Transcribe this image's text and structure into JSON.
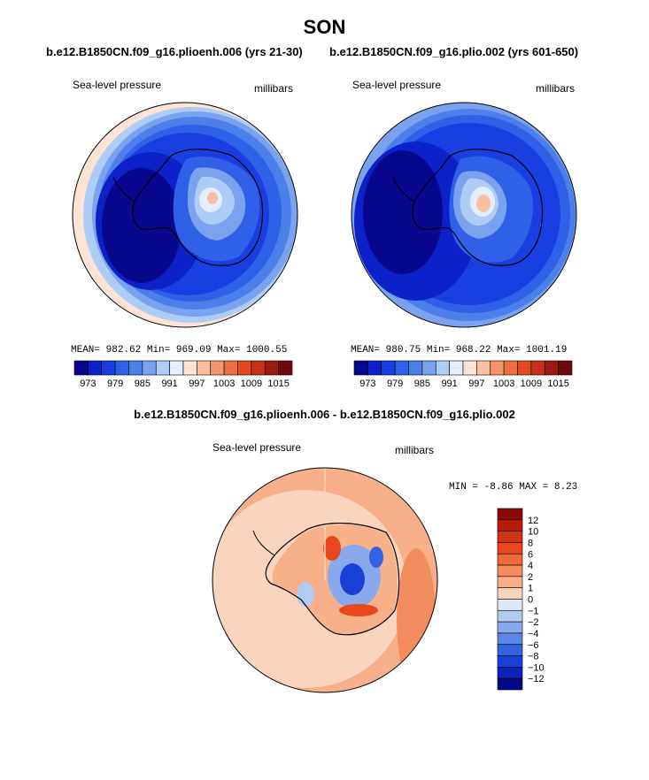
{
  "page": {
    "season": "SON",
    "left_title": "b.e12.B1850CN.f09_g16.plioenh.006 (yrs 21-30)",
    "right_title": "b.e12.B1850CN.f09_g16.plio.002 (yrs 601-650)",
    "diff_title": "b.e12.B1850CN.f09_g16.plioenh.006 - b.e12.B1850CN.f09_g16.plio.002"
  },
  "chart_data": [
    {
      "type": "heatmap",
      "projection": "south polar stereographic",
      "variable": "Sea-level pressure",
      "units": "millibars",
      "stats": {
        "mean": "982.62",
        "min": "969.09",
        "max": "1000.55"
      },
      "stats_labels": {
        "mean": "MEAN=",
        "min": "Min=",
        "max": "Max="
      },
      "colorbar": {
        "orientation": "horizontal",
        "tick_labels": [
          "973",
          "979",
          "985",
          "991",
          "997",
          "1003",
          "1009",
          "1015"
        ],
        "colors": [
          "#08088f",
          "#0c22c8",
          "#1a3fe0",
          "#3060e8",
          "#4c7fea",
          "#7aa2ee",
          "#aecdf6",
          "#e3efff",
          "#fde3d4",
          "#f9bfa2",
          "#f4946c",
          "#f06c43",
          "#e44a1f",
          "#c4301a",
          "#9a1a10",
          "#700808"
        ]
      }
    },
    {
      "type": "heatmap",
      "projection": "south polar stereographic",
      "variable": "Sea-level pressure",
      "units": "millibars",
      "stats": {
        "mean": "980.75",
        "min": "968.22",
        "max": "1001.19"
      },
      "stats_labels": {
        "mean": "MEAN=",
        "min": "Min=",
        "max": "Max="
      },
      "colorbar": {
        "orientation": "horizontal",
        "tick_labels": [
          "973",
          "979",
          "985",
          "991",
          "997",
          "1003",
          "1009",
          "1015"
        ],
        "colors": [
          "#08088f",
          "#0c22c8",
          "#1a3fe0",
          "#3060e8",
          "#4c7fea",
          "#7aa2ee",
          "#aecdf6",
          "#e3efff",
          "#fde3d4",
          "#f9bfa2",
          "#f4946c",
          "#f06c43",
          "#e44a1f",
          "#c4301a",
          "#9a1a10",
          "#700808"
        ]
      }
    },
    {
      "type": "heatmap",
      "projection": "south polar stereographic",
      "variable": "Sea-level pressure",
      "units": "millibars",
      "stats": {
        "min": "-8.86",
        "max": "8.23"
      },
      "stats_labels": {
        "min": "MIN =",
        "max": "MAX ="
      },
      "colorbar": {
        "orientation": "vertical",
        "tick_labels": [
          "12",
          "10",
          "8",
          "6",
          "4",
          "2",
          "1",
          "0",
          "−1",
          "−2",
          "−4",
          "−6",
          "−8",
          "−10",
          "−12"
        ],
        "colors": [
          "#8b0a06",
          "#b31c0c",
          "#d03214",
          "#e8471c",
          "#f06a38",
          "#f48d5e",
          "#f7b08a",
          "#fad4bd",
          "#dce8f8",
          "#b3ccf2",
          "#88aaec",
          "#5c86e6",
          "#3462e0",
          "#1a3fd6",
          "#0c22b8",
          "#06088a"
        ]
      }
    }
  ]
}
